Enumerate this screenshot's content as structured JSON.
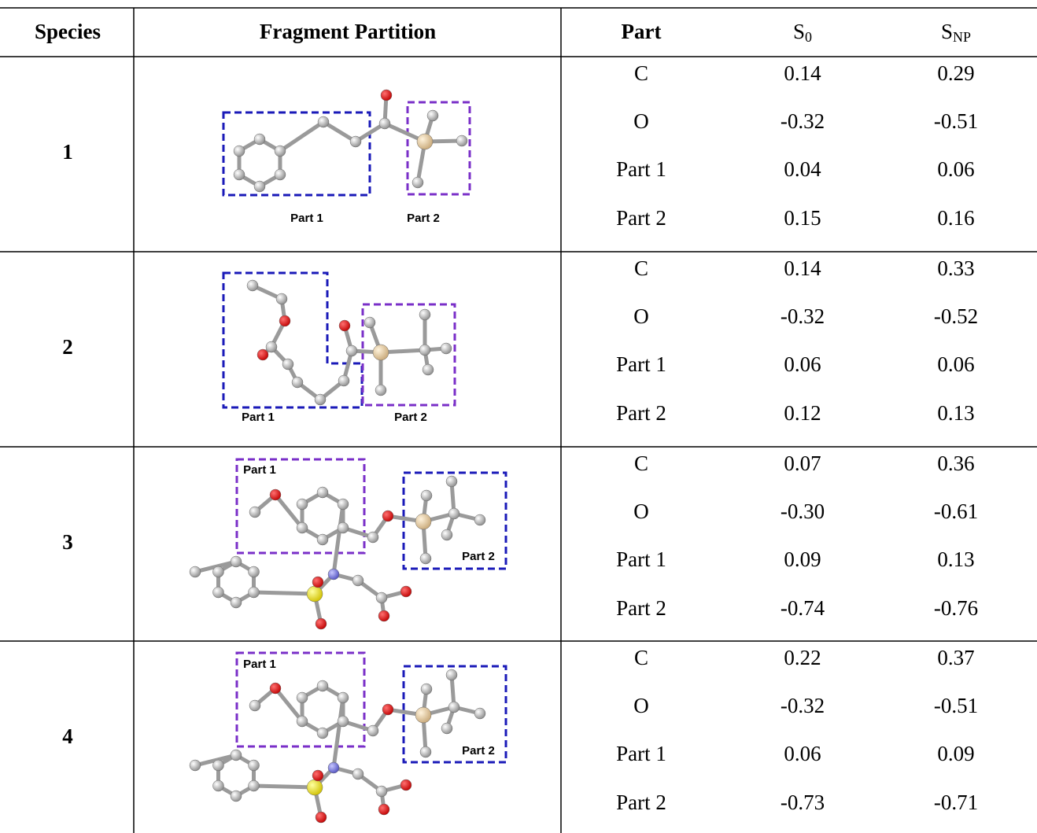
{
  "header": {
    "species": "Species",
    "fragment_partition": "Fragment Partition",
    "part": "Part",
    "s0": {
      "symbol": "S",
      "subscript": "0"
    },
    "snp": {
      "symbol": "S",
      "subscript": "NP"
    }
  },
  "rows": [
    {
      "species": "1",
      "figure_labels": [
        "Part 1",
        "Part 2"
      ],
      "entries": [
        [
          "C",
          "0.14",
          "0.29"
        ],
        [
          "O",
          "-0.32",
          "-0.51"
        ],
        [
          "Part 1",
          "0.04",
          "0.06"
        ],
        [
          "Part 2",
          "0.15",
          "0.16"
        ]
      ]
    },
    {
      "species": "2",
      "figure_labels": [
        "Part 1",
        "Part 2"
      ],
      "entries": [
        [
          "C",
          "0.14",
          "0.33"
        ],
        [
          "O",
          "-0.32",
          "-0.52"
        ],
        [
          "Part 1",
          "0.06",
          "0.06"
        ],
        [
          "Part 2",
          "0.12",
          "0.13"
        ]
      ]
    },
    {
      "species": "3",
      "figure_labels": [
        "Part 1",
        "Part 2"
      ],
      "entries": [
        [
          "C",
          "0.07",
          "0.36"
        ],
        [
          "O",
          "-0.30",
          "-0.61"
        ],
        [
          "Part 1",
          "0.09",
          "0.13"
        ],
        [
          "Part 2",
          "-0.74",
          "-0.76"
        ]
      ]
    },
    {
      "species": "4",
      "figure_labels": [
        "Part 1",
        "Part 2"
      ],
      "entries": [
        [
          "C",
          "0.22",
          "0.37"
        ],
        [
          "O",
          "-0.32",
          "-0.51"
        ],
        [
          "Part 1",
          "0.06",
          "0.09"
        ],
        [
          "Part 2",
          "-0.73",
          "-0.71"
        ]
      ]
    }
  ]
}
